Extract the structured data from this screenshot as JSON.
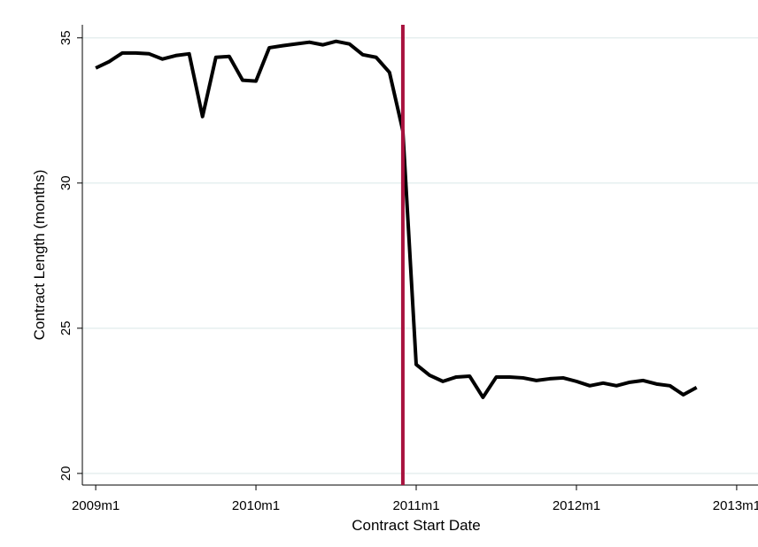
{
  "chart_data": {
    "type": "line",
    "xlabel": "Contract Start Date",
    "ylabel": "Contract Length (months)",
    "x": [
      "2009m1",
      "2009m2",
      "2009m3",
      "2009m4",
      "2009m5",
      "2009m6",
      "2009m7",
      "2009m8",
      "2009m9",
      "2009m10",
      "2009m11",
      "2009m12",
      "2010m1",
      "2010m2",
      "2010m3",
      "2010m4",
      "2010m5",
      "2010m6",
      "2010m7",
      "2010m8",
      "2010m9",
      "2010m10",
      "2010m11",
      "2010m12",
      "2011m1",
      "2011m2",
      "2011m3",
      "2011m4",
      "2011m5",
      "2011m6",
      "2011m7",
      "2011m8",
      "2011m9",
      "2011m10",
      "2011m11",
      "2011m12",
      "2012m1",
      "2012m2",
      "2012m3",
      "2012m4",
      "2012m5",
      "2012m6",
      "2012m7",
      "2012m8",
      "2012m9",
      "2012m10"
    ],
    "series": [
      {
        "color": "#000000",
        "values": [
          33.96,
          34.18,
          34.48,
          34.48,
          34.45,
          34.27,
          34.39,
          34.45,
          32.29,
          34.33,
          34.36,
          33.54,
          33.51,
          34.66,
          34.73,
          34.79,
          34.85,
          34.76,
          34.88,
          34.79,
          34.42,
          34.33,
          33.81,
          31.8,
          23.75,
          23.38,
          23.17,
          23.32,
          23.35,
          22.62,
          23.32,
          23.32,
          23.29,
          23.2,
          23.26,
          23.29,
          23.17,
          23.02,
          23.11,
          23.02,
          23.14,
          23.2,
          23.08,
          23.02,
          22.71,
          22.96
        ]
      }
    ],
    "vline": {
      "x": "2010m12",
      "color": "#a8123e"
    },
    "xlim": [
      "2008m12",
      "2013m2"
    ],
    "xticks": [
      "2009m1",
      "2010m1",
      "2011m1",
      "2012m1",
      "2013m1"
    ],
    "ylim": [
      19.6,
      35.45
    ],
    "yticks": [
      20,
      25,
      30,
      35
    ],
    "grid": true
  }
}
